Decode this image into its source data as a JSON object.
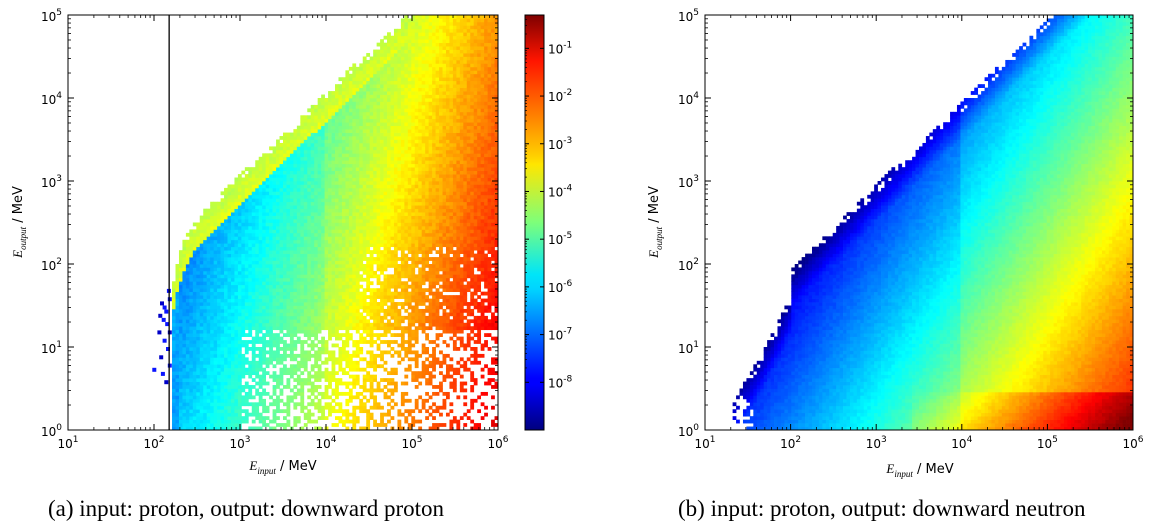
{
  "figure": {
    "panels": [
      {
        "caption": "(a) input: proton, output: downward proton",
        "xlabel": {
          "symbol": "E",
          "subscript": "input",
          "unit": " / MeV"
        },
        "ylabel": {
          "symbol": "E",
          "subscript": "output",
          "unit": " / MeV"
        },
        "has_colorbar": true,
        "has_threshold_line": true
      },
      {
        "caption": "(b) input: proton, output: downward neutron",
        "xlabel": {
          "symbol": "E",
          "subscript": "input",
          "unit": " / MeV"
        },
        "ylabel": {
          "symbol": "E",
          "subscript": "output",
          "unit": " / MeV"
        },
        "has_colorbar": false,
        "has_threshold_line": false
      }
    ]
  },
  "chart_data": [
    {
      "type": "heatmap",
      "title": "",
      "xlabel": "E_input / MeV",
      "ylabel": "E_output / MeV",
      "x_scale": "log",
      "y_scale": "log",
      "xlim": [
        10,
        1000000
      ],
      "ylim": [
        1,
        100000
      ],
      "x_ticks": [
        "10^1",
        "10^2",
        "10^3",
        "10^4",
        "10^5",
        "10^6"
      ],
      "y_ticks": [
        "10^0",
        "10^1",
        "10^2",
        "10^3",
        "10^4",
        "10^5"
      ],
      "threshold_x": 150,
      "colorbar": {
        "scale": "log",
        "range": [
          1e-09,
          0.5
        ],
        "ticks": [
          "10^-8",
          "10^-7",
          "10^-6",
          "10^-5",
          "10^-4",
          "10^-3",
          "10^-2",
          "10^-1"
        ],
        "colormap": "jet"
      },
      "description_of_pattern": "Populated for E_input above ~150 MeV and E_output below E_input; highest values at high E_input, low-to-mid E_output."
    },
    {
      "type": "heatmap",
      "title": "",
      "xlabel": "E_input / MeV",
      "ylabel": "E_output / MeV",
      "x_scale": "log",
      "y_scale": "log",
      "xlim": [
        10,
        1000000
      ],
      "ylim": [
        1,
        100000
      ],
      "x_ticks": [
        "10^1",
        "10^2",
        "10^3",
        "10^4",
        "10^5",
        "10^6"
      ],
      "y_ticks": [
        "10^0",
        "10^1",
        "10^2",
        "10^3",
        "10^4",
        "10^5"
      ],
      "colormap": "jet",
      "description_of_pattern": "Populated for E_input above ~20 MeV and E_output below E_input; maximum at highest E_input and lowest E_output."
    }
  ]
}
